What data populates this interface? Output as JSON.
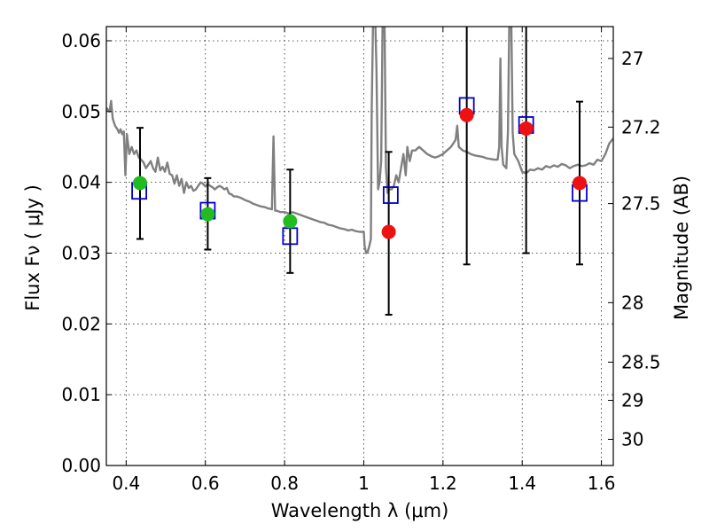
{
  "chart_data": {
    "type": "scatter",
    "xlabel": "Wavelength  λ (μm)",
    "ylabel": "Flux  Fν  ( μJy )",
    "ylabel_right": "Magnitude (AB)",
    "xlim": [
      0.35,
      1.63
    ],
    "ylim": [
      0.0,
      0.062
    ],
    "grid": true,
    "xticks": [
      {
        "value": 0.4,
        "label": "0.4"
      },
      {
        "value": 0.6,
        "label": "0.6"
      },
      {
        "value": 0.8,
        "label": "0.8"
      },
      {
        "value": 1.0,
        "label": "1"
      },
      {
        "value": 1.2,
        "label": "1.2"
      },
      {
        "value": 1.4,
        "label": "1.4"
      },
      {
        "value": 1.6,
        "label": "1.6"
      }
    ],
    "yticks": [
      {
        "value": 0.0,
        "label": "0.00"
      },
      {
        "value": 0.01,
        "label": "0.01"
      },
      {
        "value": 0.02,
        "label": "0.02"
      },
      {
        "value": 0.03,
        "label": "0.03"
      },
      {
        "value": 0.04,
        "label": "0.04"
      },
      {
        "value": 0.05,
        "label": "0.05"
      },
      {
        "value": 0.06,
        "label": "0.06"
      }
    ],
    "right_ticks": [
      {
        "flux": 0.0575,
        "label": "27"
      },
      {
        "flux": 0.0478,
        "label": "27.2"
      },
      {
        "flux": 0.037,
        "label": "27.5"
      },
      {
        "flux": 0.023,
        "label": "28"
      },
      {
        "flux": 0.0146,
        "label": "28.5"
      },
      {
        "flux": 0.0092,
        "label": "29"
      },
      {
        "flux": 0.0037,
        "label": "30"
      }
    ],
    "observed_optical": {
      "color": "#22bb22",
      "points": [
        {
          "x": 0.435,
          "y": 0.0399,
          "yerr_low": 0.032,
          "yerr_high": 0.0477
        },
        {
          "x": 0.606,
          "y": 0.0355,
          "yerr_low": 0.0305,
          "yerr_high": 0.0406
        },
        {
          "x": 0.814,
          "y": 0.0345,
          "yerr_low": 0.0272,
          "yerr_high": 0.0418
        }
      ]
    },
    "observed_nir": {
      "color": "#ee1111",
      "points": [
        {
          "x": 1.063,
          "y": 0.033,
          "yerr_low": 0.0213,
          "yerr_high": 0.0443
        },
        {
          "x": 1.26,
          "y": 0.0495,
          "yerr_low": 0.0284,
          "yerr_high": 0.063
        },
        {
          "x": 1.41,
          "y": 0.0476,
          "yerr_low": 0.03,
          "yerr_high": 0.063
        },
        {
          "x": 1.545,
          "y": 0.0399,
          "yerr_low": 0.0284,
          "yerr_high": 0.0514
        }
      ]
    },
    "model_photometry": {
      "color": "#0000cc",
      "points": [
        {
          "x": 0.433,
          "y": 0.0388
        },
        {
          "x": 0.606,
          "y": 0.036
        },
        {
          "x": 0.814,
          "y": 0.0324
        },
        {
          "x": 1.068,
          "y": 0.0382
        },
        {
          "x": 1.26,
          "y": 0.0508
        },
        {
          "x": 1.41,
          "y": 0.0481
        },
        {
          "x": 1.545,
          "y": 0.0385
        }
      ]
    },
    "model_spectrum": {
      "color": "#808080",
      "points": [
        [
          0.35,
          0.0505
        ],
        [
          0.358,
          0.05
        ],
        [
          0.362,
          0.0515
        ],
        [
          0.366,
          0.049
        ],
        [
          0.372,
          0.048
        ],
        [
          0.378,
          0.0475
        ],
        [
          0.382,
          0.047
        ],
        [
          0.386,
          0.0475
        ],
        [
          0.39,
          0.0468
        ],
        [
          0.394,
          0.0472
        ],
        [
          0.398,
          0.041
        ],
        [
          0.402,
          0.0468
        ],
        [
          0.408,
          0.044
        ],
        [
          0.414,
          0.045
        ],
        [
          0.42,
          0.044
        ],
        [
          0.426,
          0.0445
        ],
        [
          0.432,
          0.0435
        ],
        [
          0.438,
          0.0432
        ],
        [
          0.444,
          0.0428
        ],
        [
          0.45,
          0.042
        ],
        [
          0.456,
          0.0425
        ],
        [
          0.462,
          0.043
        ],
        [
          0.468,
          0.042
        ],
        [
          0.474,
          0.0415
        ],
        [
          0.48,
          0.0435
        ],
        [
          0.486,
          0.0417
        ],
        [
          0.492,
          0.0422
        ],
        [
          0.498,
          0.0415
        ],
        [
          0.504,
          0.0428
        ],
        [
          0.51,
          0.0412
        ],
        [
          0.516,
          0.041
        ],
        [
          0.522,
          0.0398
        ],
        [
          0.528,
          0.041
        ],
        [
          0.534,
          0.0395
        ],
        [
          0.54,
          0.0405
        ],
        [
          0.546,
          0.0385
        ],
        [
          0.552,
          0.04
        ],
        [
          0.558,
          0.0392
        ],
        [
          0.564,
          0.0395
        ],
        [
          0.57,
          0.0388
        ],
        [
          0.576,
          0.039
        ],
        [
          0.582,
          0.0395
        ],
        [
          0.588,
          0.04
        ],
        [
          0.594,
          0.0398
        ],
        [
          0.6,
          0.0394
        ],
        [
          0.606,
          0.0398
        ],
        [
          0.612,
          0.0395
        ],
        [
          0.618,
          0.0393
        ],
        [
          0.624,
          0.039
        ],
        [
          0.63,
          0.0393
        ],
        [
          0.636,
          0.0395
        ],
        [
          0.642,
          0.0393
        ],
        [
          0.648,
          0.039
        ],
        [
          0.654,
          0.0392
        ],
        [
          0.66,
          0.0384
        ],
        [
          0.666,
          0.0383
        ],
        [
          0.672,
          0.038
        ],
        [
          0.68,
          0.038
        ],
        [
          0.69,
          0.0378
        ],
        [
          0.7,
          0.0375
        ],
        [
          0.71,
          0.0373
        ],
        [
          0.72,
          0.037
        ],
        [
          0.73,
          0.0368
        ],
        [
          0.74,
          0.0366
        ],
        [
          0.75,
          0.0365
        ],
        [
          0.76,
          0.0363
        ],
        [
          0.768,
          0.0362
        ],
        [
          0.772,
          0.0465
        ],
        [
          0.776,
          0.036
        ],
        [
          0.78,
          0.036
        ],
        [
          0.79,
          0.0358
        ],
        [
          0.8,
          0.0358
        ],
        [
          0.81,
          0.0356
        ],
        [
          0.82,
          0.0358
        ],
        [
          0.83,
          0.0356
        ],
        [
          0.84,
          0.0354
        ],
        [
          0.85,
          0.0352
        ],
        [
          0.86,
          0.035
        ],
        [
          0.87,
          0.0348
        ],
        [
          0.88,
          0.0346
        ],
        [
          0.89,
          0.0344
        ],
        [
          0.9,
          0.0343
        ],
        [
          0.91,
          0.034
        ],
        [
          0.92,
          0.0339
        ],
        [
          0.93,
          0.0337
        ],
        [
          0.94,
          0.0335
        ],
        [
          0.95,
          0.0334
        ],
        [
          0.96,
          0.0332
        ],
        [
          0.97,
          0.0333
        ],
        [
          0.98,
          0.0331
        ],
        [
          0.99,
          0.033
        ],
        [
          1.0,
          0.033
        ],
        [
          1.002,
          0.031
        ],
        [
          1.006,
          0.03
        ],
        [
          1.01,
          0.0302
        ],
        [
          1.014,
          0.031
        ],
        [
          1.018,
          0.032
        ],
        [
          1.02,
          0.05
        ],
        [
          1.024,
          0.065
        ],
        [
          1.028,
          0.065
        ],
        [
          1.032,
          0.056
        ],
        [
          1.036,
          0.039
        ],
        [
          1.04,
          0.04
        ],
        [
          1.044,
          0.043
        ],
        [
          1.048,
          0.065
        ],
        [
          1.052,
          0.065
        ],
        [
          1.056,
          0.042
        ],
        [
          1.06,
          0.0385
        ],
        [
          1.064,
          0.039
        ],
        [
          1.07,
          0.039
        ],
        [
          1.076,
          0.0395
        ],
        [
          1.082,
          0.041
        ],
        [
          1.088,
          0.04
        ],
        [
          1.094,
          0.042
        ],
        [
          1.1,
          0.044
        ],
        [
          1.106,
          0.041
        ],
        [
          1.11,
          0.045
        ],
        [
          1.116,
          0.043
        ],
        [
          1.122,
          0.0445
        ],
        [
          1.13,
          0.0445
        ],
        [
          1.14,
          0.045
        ],
        [
          1.15,
          0.0445
        ],
        [
          1.16,
          0.044
        ],
        [
          1.17,
          0.0437
        ],
        [
          1.18,
          0.0435
        ],
        [
          1.19,
          0.0437
        ],
        [
          1.2,
          0.044
        ],
        [
          1.21,
          0.0445
        ],
        [
          1.22,
          0.045
        ],
        [
          1.226,
          0.0455
        ],
        [
          1.232,
          0.046
        ],
        [
          1.236,
          0.048
        ],
        [
          1.24,
          0.045
        ],
        [
          1.25,
          0.0445
        ],
        [
          1.26,
          0.0443
        ],
        [
          1.27,
          0.044
        ],
        [
          1.28,
          0.0438
        ],
        [
          1.29,
          0.0437
        ],
        [
          1.3,
          0.0436
        ],
        [
          1.31,
          0.0434
        ],
        [
          1.32,
          0.0433
        ],
        [
          1.33,
          0.0432
        ],
        [
          1.338,
          0.0432
        ],
        [
          1.342,
          0.045
        ],
        [
          1.345,
          0.0575
        ],
        [
          1.348,
          0.045
        ],
        [
          1.352,
          0.0425
        ],
        [
          1.36,
          0.042
        ],
        [
          1.364,
          0.047
        ],
        [
          1.368,
          0.065
        ],
        [
          1.372,
          0.065
        ],
        [
          1.376,
          0.047
        ],
        [
          1.38,
          0.044
        ],
        [
          1.39,
          0.043
        ],
        [
          1.4,
          0.0415
        ],
        [
          1.41,
          0.0413
        ],
        [
          1.42,
          0.0418
        ],
        [
          1.43,
          0.0417
        ],
        [
          1.44,
          0.042
        ],
        [
          1.45,
          0.0418
        ],
        [
          1.46,
          0.0423
        ],
        [
          1.47,
          0.0421
        ],
        [
          1.48,
          0.0424
        ],
        [
          1.49,
          0.0422
        ],
        [
          1.5,
          0.0426
        ],
        [
          1.51,
          0.0424
        ],
        [
          1.52,
          0.042
        ],
        [
          1.53,
          0.0423
        ],
        [
          1.54,
          0.0425
        ],
        [
          1.55,
          0.0423
        ],
        [
          1.56,
          0.0424
        ],
        [
          1.57,
          0.0427
        ],
        [
          1.58,
          0.0425
        ],
        [
          1.59,
          0.0432
        ],
        [
          1.6,
          0.043
        ],
        [
          1.61,
          0.044
        ],
        [
          1.62,
          0.0455
        ],
        [
          1.63,
          0.0462
        ]
      ]
    }
  }
}
